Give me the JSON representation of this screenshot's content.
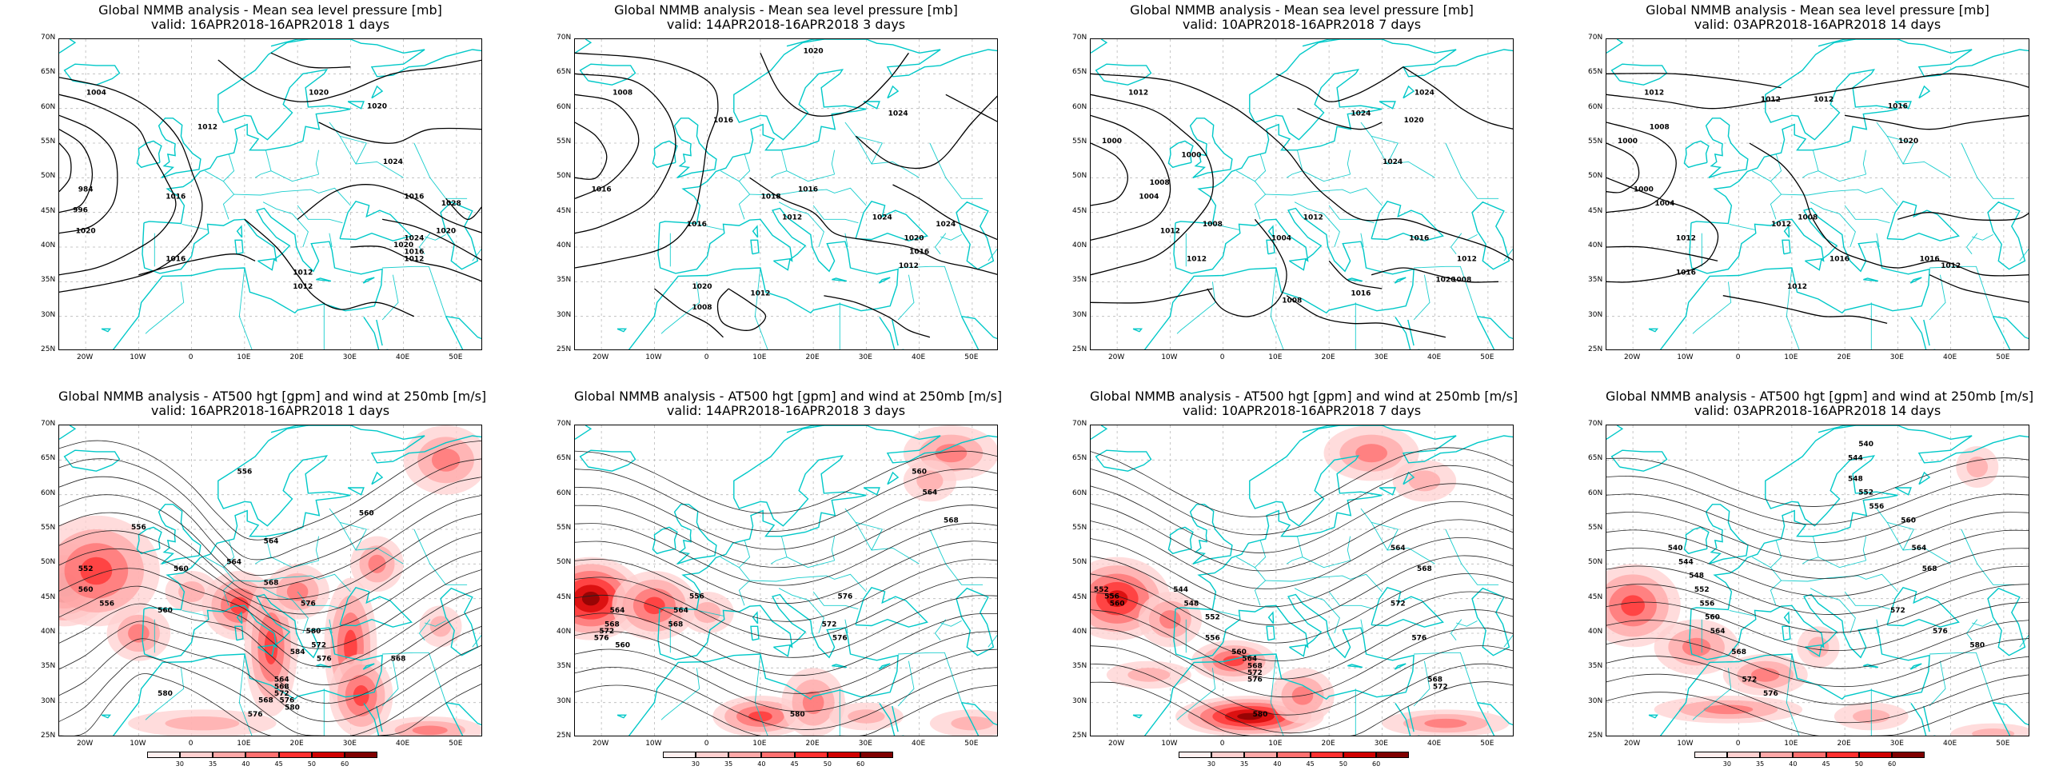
{
  "colors": {
    "coast": "#00c8c8",
    "contour": "#000000",
    "grid": "#b8b8b8",
    "wind_ramp": [
      "#fff0f0",
      "#ffd0d0",
      "#ffa8a8",
      "#ff7070",
      "#ff3030",
      "#d00000",
      "#800000"
    ]
  },
  "axes": {
    "lat_labels": [
      "70N",
      "65N",
      "60N",
      "55N",
      "50N",
      "45N",
      "40N",
      "35N",
      "30N",
      "25N"
    ],
    "lon_labels": [
      "20W",
      "10W",
      "0",
      "10E",
      "20E",
      "30E",
      "40E",
      "50E"
    ]
  },
  "colorbar": {
    "labels": [
      "30",
      "35",
      "40",
      "45",
      "50",
      "60"
    ]
  },
  "panels": [
    {
      "id": "mslp-1",
      "row": 0,
      "col": 0,
      "kind": "mslp",
      "title": "Global NMMB analysis - Mean sea level pressure [mb]",
      "subtitle": "valid: 16APR2018-16APR2018  1 days",
      "contour_labels": [
        "1004",
        "1016",
        "1020",
        "1020",
        "1012",
        "1024",
        "1016",
        "1020",
        "1028",
        "1024",
        "1020",
        "1016",
        "1012",
        "1016",
        "1012",
        "1012",
        "984",
        "1020",
        "996"
      ]
    },
    {
      "id": "mslp-3",
      "row": 0,
      "col": 1,
      "kind": "mslp",
      "title": "Global NMMB analysis - Mean sea level pressure [mb]",
      "subtitle": "valid: 14APR2018-16APR2018  3 days",
      "contour_labels": [
        "1008",
        "1020",
        "1016",
        "1024",
        "1016",
        "1016",
        "1018",
        "1012",
        "1024",
        "1024",
        "1020",
        "1016",
        "1012",
        "1008",
        "1012",
        "1020",
        "1016"
      ]
    },
    {
      "id": "mslp-7",
      "row": 0,
      "col": 2,
      "kind": "mslp",
      "title": "Global NMMB analysis - Mean sea level pressure [mb]",
      "subtitle": "valid: 10APR2018-16APR2018  7 days",
      "contour_labels": [
        "1012",
        "1024",
        "1024",
        "1020",
        "1000",
        "1008",
        "1024",
        "1004",
        "1000",
        "1012",
        "1008",
        "1012",
        "1016",
        "1008",
        "1004",
        "1012",
        "1016",
        "1020",
        "1012",
        "1008"
      ]
    },
    {
      "id": "mslp-14",
      "row": 0,
      "col": 3,
      "kind": "mslp",
      "title": "Global NMMB analysis - Mean sea level pressure [mb]",
      "subtitle": "valid: 03APR2018-16APR2018  14 days",
      "contour_labels": [
        "1012",
        "1012",
        "1012",
        "1008",
        "1016",
        "1000",
        "1020",
        "1000",
        "1004",
        "1008",
        "1012",
        "1012",
        "1016",
        "1016",
        "1012",
        "1016",
        "1012"
      ]
    },
    {
      "id": "z500-1",
      "row": 1,
      "col": 0,
      "kind": "z500",
      "title": "Global NMMB analysis - AT500 hgt [gpm] and wind at 250mb [m/s]",
      "subtitle": "valid: 16APR2018-16APR2018  1 days",
      "contour_labels": [
        "556",
        "556",
        "560",
        "564",
        "560",
        "552",
        "560",
        "556",
        "564",
        "568",
        "576",
        "580",
        "572",
        "576",
        "568",
        "560",
        "584",
        "564",
        "568",
        "572",
        "576",
        "580",
        "568",
        "580",
        "576"
      ]
    },
    {
      "id": "z500-3",
      "row": 1,
      "col": 1,
      "kind": "z500",
      "title": "Global NMMB analysis - AT500 hgt [gpm] and wind at 250mb [m/s]",
      "subtitle": "valid: 14APR2018-16APR2018  3 days",
      "contour_labels": [
        "560",
        "564",
        "568",
        "556",
        "564",
        "568",
        "572",
        "576",
        "576",
        "560",
        "564",
        "568",
        "572",
        "576",
        "580"
      ]
    },
    {
      "id": "z500-7",
      "row": 1,
      "col": 2,
      "kind": "z500",
      "title": "Global NMMB analysis - AT500 hgt [gpm] and wind at 250mb [m/s]",
      "subtitle": "valid: 10APR2018-16APR2018  7 days",
      "contour_labels": [
        "544",
        "548",
        "552",
        "556",
        "560",
        "564",
        "568",
        "572",
        "576",
        "580",
        "564",
        "568",
        "572",
        "576",
        "552",
        "556",
        "560",
        "568",
        "572"
      ]
    },
    {
      "id": "z500-14",
      "row": 1,
      "col": 3,
      "kind": "z500",
      "title": "Global NMMB analysis - AT500 hgt [gpm] and wind at 250mb [m/s]",
      "subtitle": "valid: 03APR2018-16APR2018  14 days",
      "contour_labels": [
        "540",
        "544",
        "548",
        "552",
        "556",
        "560",
        "564",
        "568",
        "572",
        "576",
        "580",
        "540",
        "544",
        "548",
        "552",
        "556",
        "560",
        "564",
        "568",
        "572",
        "576"
      ]
    }
  ]
}
